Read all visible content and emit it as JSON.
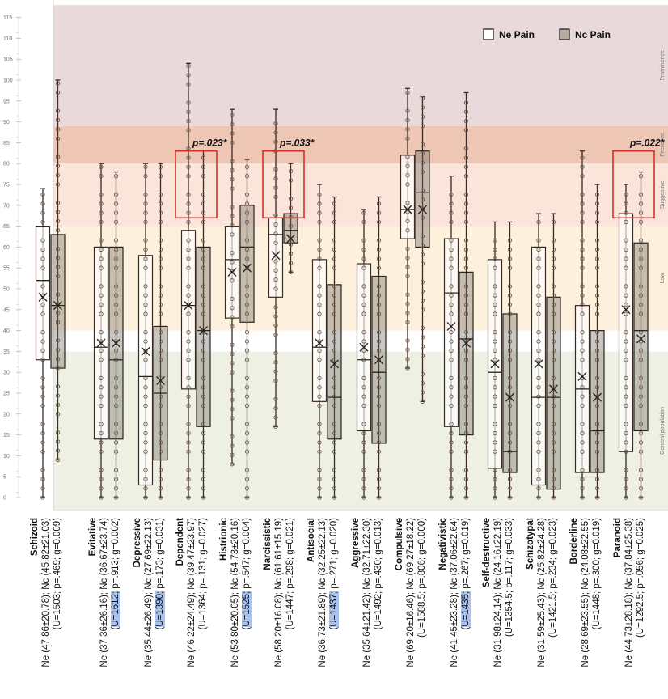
{
  "chart_data": {
    "type": "box",
    "title": "",
    "xlabel": "",
    "ylabel": "",
    "ylim": [
      0,
      115
    ],
    "yticks": [
      0,
      5,
      10,
      15,
      20,
      25,
      30,
      35,
      40,
      45,
      50,
      55,
      60,
      65,
      70,
      75,
      80,
      85,
      90,
      95,
      100,
      105,
      110,
      115
    ],
    "legend": {
      "placement": "top-right",
      "entries": [
        {
          "name": "Ne Pain",
          "color": "#ffffff"
        },
        {
          "name": "Nc Pain",
          "color": "#b7aca3"
        }
      ]
    },
    "bands": [
      {
        "label": "General population",
        "from": -3,
        "to": 35,
        "color": "#eef0e4"
      },
      {
        "label": "",
        "from": 35,
        "to": 40,
        "color": "#ffffff"
      },
      {
        "label": "Low",
        "from": 40,
        "to": 65,
        "color": "#fdf1dd"
      },
      {
        "label": "Suggestive",
        "from": 65,
        "to": 80,
        "color": "#fbe4da"
      },
      {
        "label": "Presence",
        "from": 80,
        "to": 89,
        "color": "#eec6b4"
      },
      {
        "label": "Prominence",
        "from": 89,
        "to": 118,
        "color": "#ead9da"
      }
    ],
    "categories": [
      {
        "name": "Schizoid",
        "stats": "Ne (47.86±20.78); Nc (45.82±21.03)",
        "tests": "(U=1503; p=.469; g=0.009)",
        "highlight": false,
        "ne": {
          "min": 0,
          "q1": 33,
          "median": 52,
          "q3": 65,
          "max": 74,
          "mean": 48
        },
        "nc": {
          "min": 9,
          "q1": 31,
          "median": 46,
          "q3": 63,
          "max": 100,
          "mean": 46
        }
      },
      {
        "name": "Evitative",
        "stats": "Ne (37.36±26.16); Nc (36.67±23.74)",
        "tests": "(U=1612; p=.913; g=0.002)",
        "highlight": true,
        "ne": {
          "min": 0,
          "q1": 14,
          "median": 36,
          "q3": 60,
          "max": 80,
          "mean": 37
        },
        "nc": {
          "min": 0,
          "q1": 14,
          "median": 33,
          "q3": 60,
          "max": 78,
          "mean": 37
        }
      },
      {
        "name": "Depressive",
        "stats": "Ne (35.44±26.49); Nc (27.69±22.13)",
        "tests": "(U=1390; p=.173; g=0.031)",
        "highlight": true,
        "ne": {
          "min": 0,
          "q1": 3,
          "median": 29,
          "q3": 58,
          "max": 80,
          "mean": 35
        },
        "nc": {
          "min": 0,
          "q1": 9,
          "median": 25,
          "q3": 41,
          "max": 80,
          "mean": 28
        }
      },
      {
        "name": "Dependent",
        "stats": "Ne (46.22±24.49); Nc (39.47±23.97)",
        "tests": "(U=1364; p=.131; g=0.027)",
        "highlight": false,
        "ne": {
          "min": 0,
          "q1": 26,
          "median": 46,
          "q3": 64,
          "max": 104,
          "mean": 46
        },
        "nc": {
          "min": 0,
          "q1": 17,
          "median": 40,
          "q3": 60,
          "max": 83,
          "mean": 40
        }
      },
      {
        "name": "Histrionic",
        "stats": "Ne (53.80±20.05); Nc (54.73±20.16)",
        "tests": "(U=1525; p=.547; g=0.004)",
        "highlight": true,
        "ne": {
          "min": 8,
          "q1": 43,
          "median": 57,
          "q3": 65,
          "max": 93,
          "mean": 54
        },
        "nc": {
          "min": 0,
          "q1": 42,
          "median": 60,
          "q3": 70,
          "max": 81,
          "mean": 55
        }
      },
      {
        "name": "Narcissistic",
        "stats": "Ne (58.20±16.08); Nc (61.61±15.19)",
        "tests": "(U=1447; p=.298; g=0.021)",
        "highlight": false,
        "ne": {
          "min": 17,
          "q1": 48,
          "median": 63,
          "q3": 67,
          "max": 93,
          "mean": 58
        },
        "nc": {
          "min": 54,
          "q1": 61,
          "median": 64,
          "q3": 68,
          "max": 80,
          "mean": 62
        }
      },
      {
        "name": "Antisocial",
        "stats": "Ne (36.73±21.89); Nc (32.25±22.13)",
        "tests": "(U=1437; p=.271; g=0.020)",
        "highlight": true,
        "ne": {
          "min": 0,
          "q1": 23,
          "median": 36,
          "q3": 57,
          "max": 75,
          "mean": 37
        },
        "nc": {
          "min": 0,
          "q1": 14,
          "median": 24,
          "q3": 51,
          "max": 72,
          "mean": 32
        }
      },
      {
        "name": "Aggressive",
        "stats": "Ne (35.64±21.42); Nc (32.71±22.30)",
        "tests": "(U=1492; p=.430; g=0.013)",
        "highlight": false,
        "ne": {
          "min": 0,
          "q1": 16,
          "median": 33,
          "q3": 56,
          "max": 69,
          "mean": 36
        },
        "nc": {
          "min": 0,
          "q1": 13,
          "median": 30,
          "q3": 53,
          "max": 72,
          "mean": 33
        }
      },
      {
        "name": "Compulsive",
        "stats": "Ne (69.20±16.46); Nc (69.27±18.22)",
        "tests": "(U=1588.5; p=.806; g=0.000)",
        "highlight": false,
        "ne": {
          "min": 31,
          "q1": 62,
          "median": 69,
          "q3": 82,
          "max": 98,
          "mean": 69
        },
        "nc": {
          "min": 23,
          "q1": 60,
          "median": 73,
          "q3": 83,
          "max": 96,
          "mean": 69
        }
      },
      {
        "name": "Negativistic",
        "stats": "Ne (41.45±23.28); Nc (37.06±22.64)",
        "tests": "(U=1435; p=.267; g=0.019)",
        "highlight": true,
        "ne": {
          "min": 0,
          "q1": 17,
          "median": 49,
          "q3": 62,
          "max": 77,
          "mean": 41
        },
        "nc": {
          "min": 0,
          "q1": 15,
          "median": 38,
          "q3": 54,
          "max": 97,
          "mean": 37
        }
      },
      {
        "name": "Self-destructive",
        "stats": "Ne (31.98±24.14); Nc (24.16±22.19)",
        "tests": "(U=1354.5; p=.117; g=0.033)",
        "highlight": false,
        "ne": {
          "min": 0,
          "q1": 7,
          "median": 30,
          "q3": 57,
          "max": 66,
          "mean": 32
        },
        "nc": {
          "min": 0,
          "q1": 6,
          "median": 11,
          "q3": 44,
          "max": 66,
          "mean": 24
        }
      },
      {
        "name": "Schizotypal",
        "stats": "Ne (31.59±25.43); Nc (25.82±24.28)",
        "tests": "(U=1421.5; p=.234; g=0.023)",
        "highlight": false,
        "ne": {
          "min": 0,
          "q1": 3,
          "median": 24,
          "q3": 60,
          "max": 68,
          "mean": 32
        },
        "nc": {
          "min": 0,
          "q1": 2,
          "median": 24,
          "q3": 48,
          "max": 68,
          "mean": 26
        }
      },
      {
        "name": "Borderline",
        "stats": "Ne (28.69±23.55); Nc (24.08±22.55)",
        "tests": "(U=1448; p=.300; g=0.019)",
        "highlight": false,
        "ne": {
          "min": 0,
          "q1": 6,
          "median": 26,
          "q3": 46,
          "max": 83,
          "mean": 29
        },
        "nc": {
          "min": 0,
          "q1": 6,
          "median": 16,
          "q3": 40,
          "max": 75,
          "mean": 24
        }
      },
      {
        "name": "Paranoid",
        "stats": "Ne (44.73±28.18); Nc (37.84±25.38)",
        "tests": "(U=1292.5; p=.056; g=0.025)",
        "highlight": false,
        "ne": {
          "min": 0,
          "q1": 11,
          "median": 67,
          "q3": 68,
          "max": 75,
          "mean": 45
        },
        "nc": {
          "min": 0,
          "q1": 16,
          "median": 40,
          "q3": 61,
          "max": 78,
          "mean": 38
        }
      }
    ],
    "annotations": [
      {
        "category": "Dependent",
        "text": "p=.023*",
        "box_from": 67,
        "box_to": 83
      },
      {
        "category": "Narcissistic",
        "text": "p=.033*",
        "box_from": 67,
        "box_to": 83
      },
      {
        "category": "Paranoid",
        "text": "p=.022*",
        "box_from": 67,
        "box_to": 83
      }
    ]
  }
}
